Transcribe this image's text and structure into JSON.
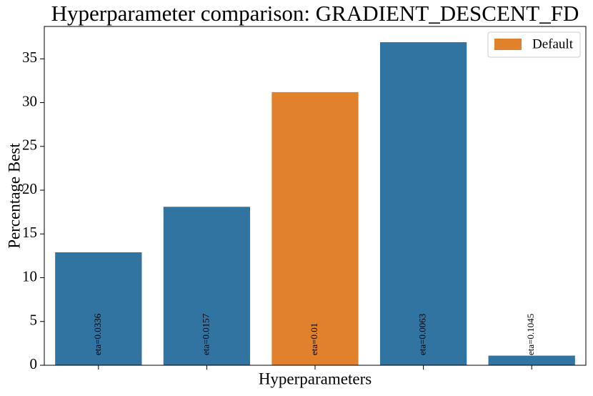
{
  "chart_data": {
    "type": "bar",
    "title": "Hyperparameter comparison: GRADIENT_DESCENT_FD",
    "x_label": "Hyperparameters",
    "y_label": "Percentage Best",
    "categories": [
      "eta=0.0336",
      "eta=0.0157",
      "eta=0.01",
      "eta=0.0063",
      "eta=0.1045"
    ],
    "values": [
      12.9,
      18.1,
      31.2,
      36.9,
      1.1
    ],
    "colors": [
      "#3274a1",
      "#3274a1",
      "#e1812c",
      "#3274a1",
      "#3274a1"
    ],
    "legend": {
      "label": "Default",
      "color": "#e1812c",
      "position": "upper right"
    },
    "ylim": [
      0,
      38.7
    ],
    "yticks": [
      0,
      5,
      10,
      15,
      20,
      25,
      30,
      35
    ],
    "grid": false
  }
}
